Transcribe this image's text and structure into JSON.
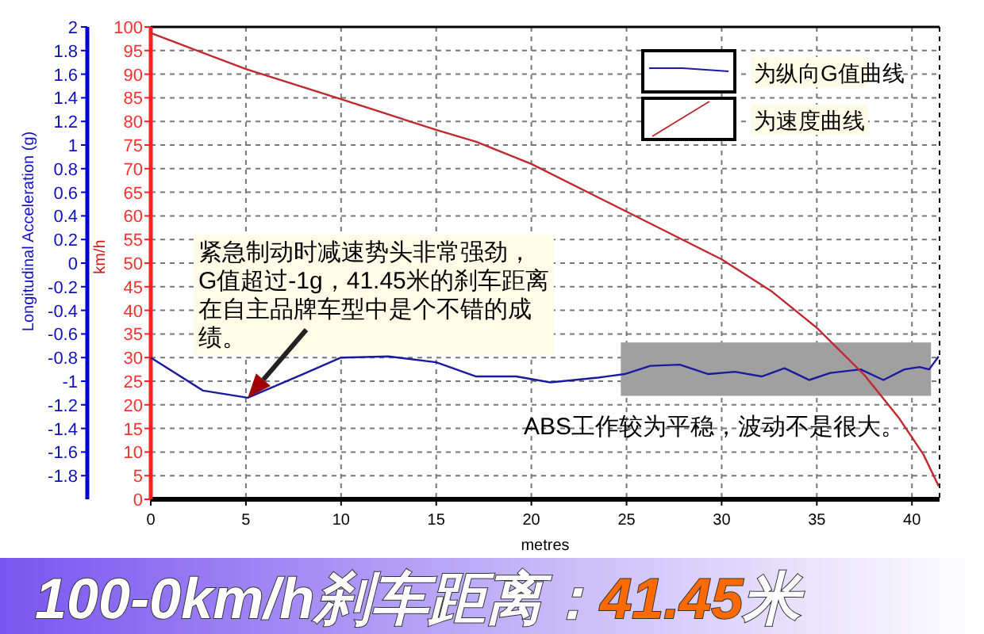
{
  "chart_data": {
    "type": "line",
    "title": "100-0km/h刹车距离：41.45米",
    "xlabel": "metres",
    "ylabel": "Longitudinal Acceleration (g)",
    "y2label": "km/h",
    "xlim": [
      0,
      41.45
    ],
    "xticks": [
      0,
      5,
      10,
      15,
      20,
      25,
      30,
      35,
      40
    ],
    "ylim": [
      -2,
      2
    ],
    "yticks": [
      -1.8,
      -1.6,
      -1.4,
      -1.2,
      -1,
      -0.8,
      -0.6,
      -0.4,
      -0.2,
      0,
      0.2,
      0.4,
      0.6,
      0.8,
      1,
      1.2,
      1.4,
      1.6,
      1.8,
      2
    ],
    "y2lim": [
      0,
      100
    ],
    "y2ticks": [
      0,
      5,
      10,
      15,
      20,
      25,
      30,
      35,
      40,
      45,
      50,
      55,
      60,
      65,
      70,
      75,
      80,
      85,
      90,
      95,
      100
    ],
    "grid": true,
    "legend": "top right",
    "line_style": "solid",
    "marker": "none",
    "series": [
      {
        "name": "为纵向G值曲线",
        "color": "#1a1a9e",
        "x": [
          0,
          2.75,
          5.1,
          8,
          10,
          12.5,
          15,
          17.1,
          19.2,
          21,
          23.5,
          24.9,
          26.25,
          27.8,
          29.3,
          30.7,
          32.1,
          33.3,
          34.6,
          35.7,
          37.3,
          38.5,
          39.6,
          40.4,
          40.9,
          41.4
        ],
        "values": [
          -0.8,
          -1.08,
          -1.14,
          -0.94,
          -0.8,
          -0.79,
          -0.84,
          -0.96,
          -0.96,
          -1.01,
          -0.97,
          -0.94,
          -0.87,
          -0.86,
          -0.94,
          -0.92,
          -0.96,
          -0.89,
          -0.99,
          -0.93,
          -0.9,
          -0.99,
          -0.9,
          -0.88,
          -0.9,
          -0.79
        ]
      },
      {
        "name": "为速度曲线",
        "color": "#c0282d",
        "axis": "y2",
        "x": [
          0,
          5,
          10,
          15,
          17.1,
          20,
          25,
          30,
          32.6,
          35,
          37.5,
          39.3,
          40.6,
          41.4
        ],
        "values": [
          98.7,
          91.1,
          84.7,
          78.2,
          75.7,
          71,
          60.9,
          50.8,
          44.1,
          36.3,
          26.3,
          17.3,
          9.5,
          2.8
        ]
      }
    ],
    "bands": [
      {
        "axis": "x",
        "from": 24.7,
        "to": 41,
        "color": "#a0a0a0"
      }
    ],
    "annotations": [
      "紧急制动时减速势头非常强劲，G值超过-1g，41.45米的刹车距离在自主品牌车型中是个不错的成绩。",
      "ABS工作较为平稳，波动不是很大。"
    ]
  }
}
